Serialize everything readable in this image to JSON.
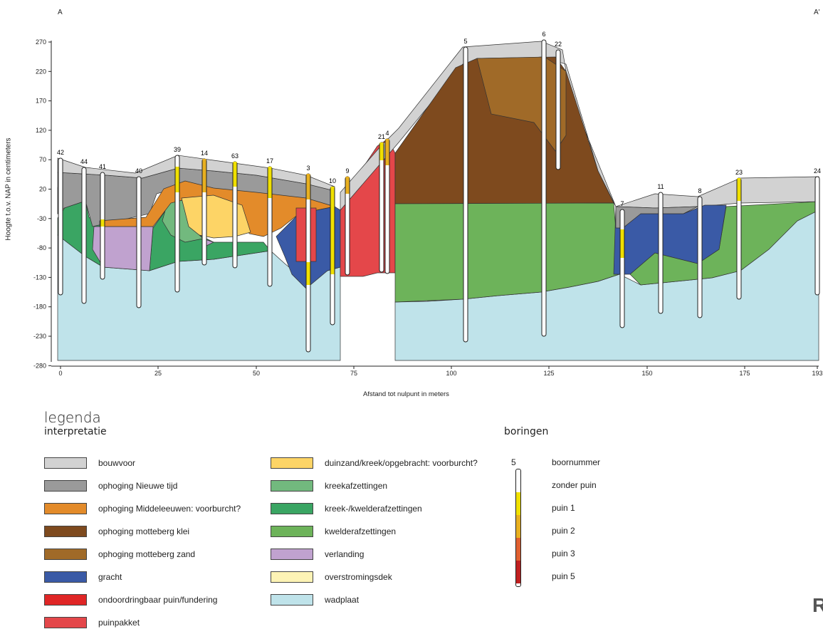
{
  "corners": {
    "left": "A",
    "right": "A'"
  },
  "axes": {
    "ylabel": "Hoogte t.o.v. NAP in centimeters",
    "xlabel": "Afstand tot nulpunt in meters",
    "yticks": [
      "270",
      "220",
      "170",
      "120",
      "70",
      "20",
      "-30",
      "-80",
      "-130",
      "-180",
      "-230",
      "-280"
    ],
    "xticks": [
      "0",
      "25",
      "50",
      "75",
      "100",
      "125",
      "150",
      "175",
      "193"
    ]
  },
  "borings": [
    "42",
    "44",
    "41",
    "40",
    "39",
    "14",
    "63",
    "17",
    "3",
    "10",
    "9",
    "21",
    "4",
    "5",
    "6",
    "22",
    "7",
    "11",
    "8",
    "23",
    "24"
  ],
  "legend": {
    "title": "legenda",
    "interpretatie_title": "interpretatie",
    "boringen_title": "boringen",
    "col1": [
      {
        "label": "bouwvoor",
        "color": "#d2d2d2"
      },
      {
        "label": "ophoging Nieuwe tijd",
        "color": "#9a9a9a"
      },
      {
        "label": "ophoging Middeleeuwen: voorburcht?",
        "color": "#e38b2a"
      },
      {
        "label": "ophoging motteberg klei",
        "color": "#7e4a1e"
      },
      {
        "label": "ophoging motteberg zand",
        "color": "#a06a28"
      },
      {
        "label": "gracht",
        "color": "#3a5aa6"
      },
      {
        "label": "ondoordringbaar puin/fundering",
        "color": "#e02626"
      },
      {
        "label": "puinpakket",
        "color": "#e4474a"
      }
    ],
    "col2": [
      {
        "label": "duinzand/kreek/opgebracht: voorburcht?",
        "color": "#fdd466"
      },
      {
        "label": "kreekafzettingen",
        "color": "#72b97e"
      },
      {
        "label": "kreek-/kwelderafzettingen",
        "color": "#3aa563"
      },
      {
        "label": "kwelderafzettingen",
        "color": "#6db35a"
      },
      {
        "label": "verlanding",
        "color": "#c0a2cf"
      },
      {
        "label": "overstromingsdek",
        "color": "#fdf3b5"
      },
      {
        "label": "wadplaat",
        "color": "#bfe3ea"
      }
    ],
    "boringen": [
      {
        "symbol": "5",
        "label": "boornummer"
      },
      {
        "label": "zonder puin",
        "color": "#ffffff"
      },
      {
        "label": "puin 1",
        "color": "#f0e000"
      },
      {
        "label": "puin 2",
        "color": "#e8b020"
      },
      {
        "label": "puin 3",
        "color": "#e06030"
      },
      {
        "label": "puin 5",
        "color": "#c02020"
      }
    ]
  },
  "logo_text": "R"
}
